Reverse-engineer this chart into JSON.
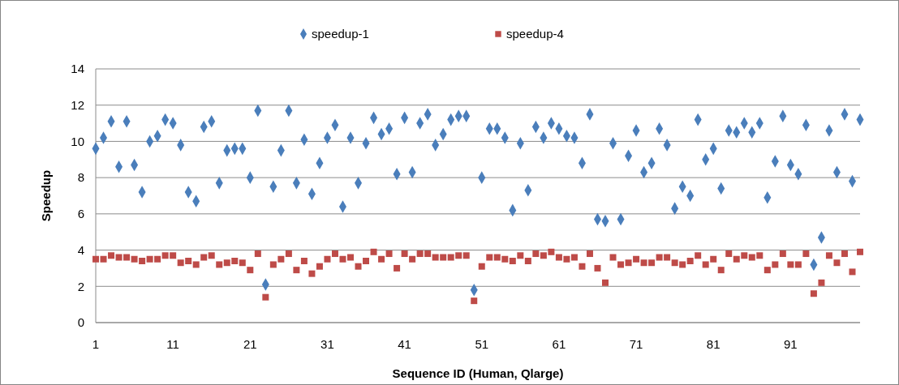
{
  "chart_data": {
    "type": "scatter",
    "xlabel": "Sequence ID (Human, Qlarge)",
    "ylabel": "Speedup",
    "x": [
      1,
      2,
      3,
      4,
      5,
      6,
      7,
      8,
      9,
      10,
      11,
      12,
      13,
      14,
      15,
      16,
      17,
      18,
      19,
      20,
      21,
      22,
      23,
      24,
      25,
      26,
      27,
      28,
      29,
      30,
      31,
      32,
      33,
      34,
      35,
      36,
      37,
      38,
      39,
      40,
      41,
      42,
      43,
      44,
      45,
      46,
      47,
      48,
      49,
      50,
      51,
      52,
      53,
      54,
      55,
      56,
      57,
      58,
      59,
      60,
      61,
      62,
      63,
      64,
      65,
      66,
      67,
      68,
      69,
      70,
      71,
      72,
      73,
      74,
      75,
      76,
      77,
      78,
      79,
      80,
      81,
      82,
      83,
      84,
      85,
      86,
      87,
      88,
      89,
      90,
      91,
      92,
      93,
      94,
      95,
      96,
      97,
      98,
      99,
      100
    ],
    "xlim": [
      1,
      100
    ],
    "xticks": [
      1,
      11,
      21,
      31,
      41,
      51,
      61,
      71,
      81,
      91
    ],
    "ylim": [
      0,
      14
    ],
    "yticks": [
      0,
      2,
      4,
      6,
      8,
      10,
      12,
      14
    ],
    "grid": "y",
    "legend": "top",
    "series": [
      {
        "name": "speedup-1",
        "color": "#4a7ebb",
        "marker": "diamond",
        "values": [
          9.6,
          10.2,
          11.1,
          8.6,
          11.1,
          8.7,
          7.2,
          10.0,
          10.3,
          11.2,
          11.0,
          9.8,
          7.2,
          6.7,
          10.8,
          11.1,
          7.7,
          9.5,
          9.6,
          9.6,
          8.0,
          11.7,
          2.1,
          7.5,
          9.5,
          11.7,
          7.7,
          10.1,
          7.1,
          8.8,
          10.2,
          10.9,
          6.4,
          10.2,
          7.7,
          9.9,
          11.3,
          10.4,
          10.7,
          8.2,
          11.3,
          8.3,
          11.0,
          11.5,
          9.8,
          10.4,
          11.2,
          11.4,
          11.4,
          1.8,
          8.0,
          10.7,
          10.7,
          10.2,
          6.2,
          9.9,
          7.3,
          10.8,
          10.2,
          11.0,
          10.7,
          10.3,
          10.2,
          8.8,
          11.5,
          5.7,
          5.6,
          9.9,
          5.7,
          9.2,
          10.6,
          8.3,
          8.8,
          10.7,
          9.8,
          6.3,
          7.5,
          7.0,
          11.2,
          9.0,
          9.6,
          7.4,
          10.6,
          10.5,
          11.0,
          10.5,
          11.0,
          6.9,
          8.9,
          11.4,
          8.7,
          8.2,
          10.9,
          3.2,
          4.7,
          10.6,
          8.3,
          11.5,
          7.8,
          11.2
        ]
      },
      {
        "name": "speedup-4",
        "color": "#be4b48",
        "marker": "square",
        "values": [
          3.5,
          3.5,
          3.7,
          3.6,
          3.6,
          3.5,
          3.4,
          3.5,
          3.5,
          3.7,
          3.7,
          3.3,
          3.4,
          3.2,
          3.6,
          3.7,
          3.2,
          3.3,
          3.4,
          3.3,
          2.9,
          3.8,
          1.4,
          3.2,
          3.5,
          3.8,
          2.9,
          3.4,
          2.7,
          3.1,
          3.5,
          3.8,
          3.5,
          3.6,
          3.1,
          3.4,
          3.9,
          3.5,
          3.8,
          3.0,
          3.8,
          3.5,
          3.8,
          3.8,
          3.6,
          3.6,
          3.6,
          3.7,
          3.7,
          1.2,
          3.1,
          3.6,
          3.6,
          3.5,
          3.4,
          3.7,
          3.4,
          3.8,
          3.7,
          3.9,
          3.6,
          3.5,
          3.6,
          3.1,
          3.8,
          3.0,
          2.2,
          3.6,
          3.2,
          3.3,
          3.5,
          3.3,
          3.3,
          3.6,
          3.6,
          3.3,
          3.2,
          3.4,
          3.7,
          3.2,
          3.5,
          2.9,
          3.8,
          3.5,
          3.7,
          3.6,
          3.7,
          2.9,
          3.2,
          3.8,
          3.2,
          3.2,
          3.8,
          1.6,
          2.2,
          3.7,
          3.3,
          3.8,
          2.8,
          3.9
        ]
      }
    ]
  }
}
